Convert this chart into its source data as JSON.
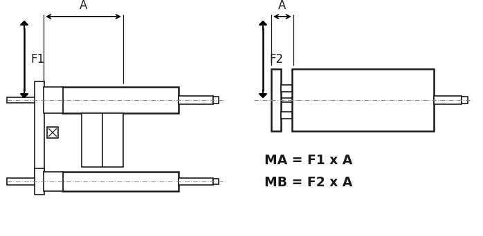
{
  "bg_color": "#ffffff",
  "line_color": "#1a1a1a",
  "dash_color": "#888888",
  "arrow_color": "#000000",
  "text_color": "#1a1a1a",
  "formula1": "MA = F1 x A",
  "formula2": "MB = F2 x A",
  "label_A": "A",
  "label_F1": "F1",
  "label_F2": "F2"
}
